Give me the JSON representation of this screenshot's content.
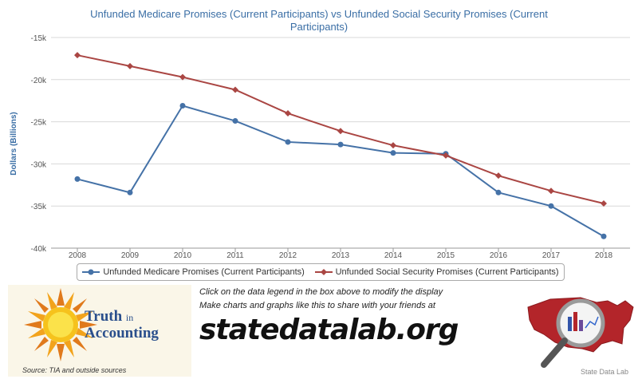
{
  "chart_data": {
    "type": "line",
    "title_line1": "Unfunded Medicare Promises (Current Participants) vs Unfunded Social Security Promises (Current",
    "title_line2": "Participants)",
    "ylabel": "Dollars (Billions)",
    "xlabel": "",
    "x": [
      "2008",
      "2009",
      "2010",
      "2011",
      "2012",
      "2013",
      "2014",
      "2015",
      "2016",
      "2017",
      "2018"
    ],
    "ylim": [
      -40,
      -15
    ],
    "yticks": [
      "-15k",
      "-20k",
      "-25k",
      "-30k",
      "-35k",
      "-40k"
    ],
    "ytick_values": [
      -15,
      -20,
      -25,
      -30,
      -35,
      -40
    ],
    "grid": true,
    "legend_position": "bottom",
    "series": [
      {
        "name": "Unfunded Medicare Promises (Current Participants)",
        "color": "#4572a7",
        "marker": "circle",
        "values": [
          -31.8,
          -33.4,
          -23.1,
          -24.9,
          -27.4,
          -27.7,
          -28.7,
          -28.8,
          -33.4,
          -35.0,
          -38.6
        ]
      },
      {
        "name": "Unfunded Social Security Promises (Current Participants)",
        "color": "#aa4643",
        "marker": "diamond",
        "values": [
          -17.1,
          -18.4,
          -19.7,
          -21.2,
          -24.0,
          -26.1,
          -27.8,
          -29.0,
          -31.4,
          -33.2,
          -34.7
        ]
      }
    ]
  },
  "footer": {
    "tia_line1": "Truth",
    "tia_line2": "in",
    "tia_line3": "Accounting",
    "source": "Source: TIA and outside sources",
    "promo1": "Click on the data legend in the box above to modify the display",
    "promo2": "Make charts and graphs like this to share with your friends at",
    "url": "statedatalab.org",
    "sdl_caption": "State Data Lab"
  }
}
